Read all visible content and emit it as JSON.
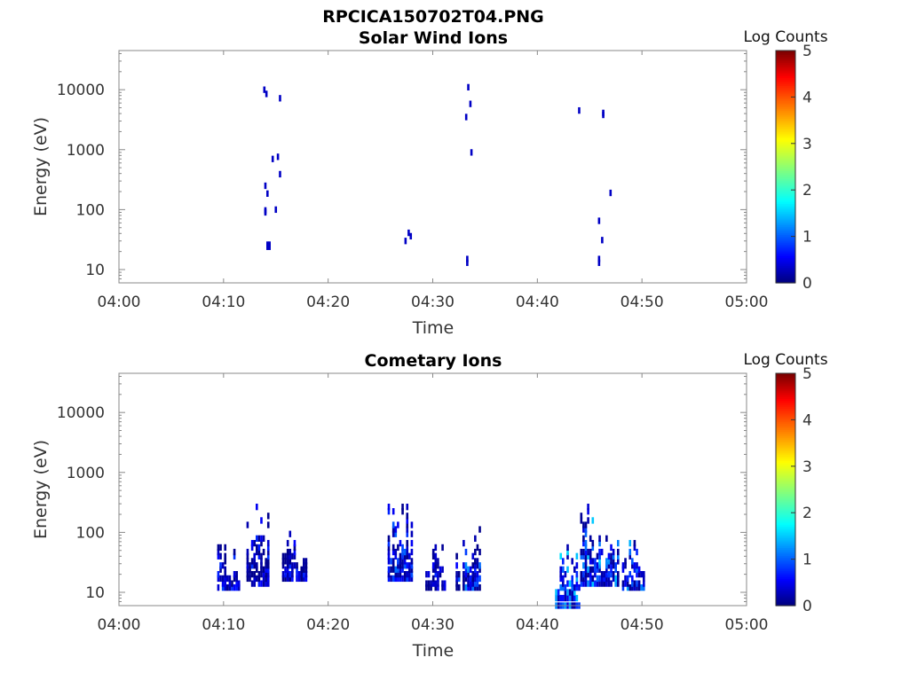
{
  "figure": {
    "title": "RPCICA150702T04.PNG"
  },
  "colormap": {
    "stops": [
      "#00007f",
      "#0000ff",
      "#00ffff",
      "#ffff00",
      "#ff0000",
      "#7f0000"
    ]
  },
  "chart_data": [
    {
      "type": "heatmap",
      "title": "Solar Wind Ions",
      "xlabel": "Time",
      "ylabel": "Energy (eV)",
      "x_range": [
        "04:00",
        "05:00"
      ],
      "x_ticks": [
        "04:00",
        "04:10",
        "04:20",
        "04:30",
        "04:40",
        "04:50",
        "05:00"
      ],
      "y_scale": "log",
      "y_range": [
        6,
        45000
      ],
      "y_ticks": [
        "10",
        "100",
        "1000",
        "10000"
      ],
      "colorbar": {
        "label": "Log Counts",
        "range": [
          0,
          5
        ],
        "ticks": [
          "0",
          "1",
          "2",
          "3",
          "4",
          "5"
        ]
      },
      "points": [
        {
          "t": 13.9,
          "e": 10000,
          "v": 0.3
        },
        {
          "t": 14.1,
          "e": 8500,
          "v": 0.3
        },
        {
          "t": 15.4,
          "e": 7200,
          "v": 0.3
        },
        {
          "t": 14.7,
          "e": 700,
          "v": 0.3
        },
        {
          "t": 15.2,
          "e": 760,
          "v": 0.3
        },
        {
          "t": 15.4,
          "e": 390,
          "v": 0.3
        },
        {
          "t": 14.0,
          "e": 250,
          "v": 0.3
        },
        {
          "t": 14.2,
          "e": 185,
          "v": 0.3
        },
        {
          "t": 14.0,
          "e": 97,
          "v": 0.3
        },
        {
          "t": 14.0,
          "e": 90,
          "v": 0.3
        },
        {
          "t": 15.0,
          "e": 100,
          "v": 0.3
        },
        {
          "t": 14.2,
          "e": 26,
          "v": 0.3
        },
        {
          "t": 14.4,
          "e": 26,
          "v": 0.3
        },
        {
          "t": 14.2,
          "e": 24,
          "v": 0.3
        },
        {
          "t": 14.4,
          "e": 24,
          "v": 0.3
        },
        {
          "t": 27.4,
          "e": 30,
          "v": 0.3
        },
        {
          "t": 27.7,
          "e": 41,
          "v": 0.3
        },
        {
          "t": 27.9,
          "e": 36,
          "v": 0.3
        },
        {
          "t": 33.4,
          "e": 11000,
          "v": 0.3
        },
        {
          "t": 33.6,
          "e": 5800,
          "v": 0.3
        },
        {
          "t": 33.2,
          "e": 3500,
          "v": 0.3
        },
        {
          "t": 33.7,
          "e": 900,
          "v": 0.3
        },
        {
          "t": 33.3,
          "e": 15,
          "v": 0.3
        },
        {
          "t": 33.3,
          "e": 13,
          "v": 0.3
        },
        {
          "t": 44.0,
          "e": 4500,
          "v": 0.3
        },
        {
          "t": 46.3,
          "e": 4100,
          "v": 0.3
        },
        {
          "t": 46.3,
          "e": 3800,
          "v": 0.3
        },
        {
          "t": 47.0,
          "e": 190,
          "v": 0.3
        },
        {
          "t": 45.9,
          "e": 65,
          "v": 0.3
        },
        {
          "t": 46.2,
          "e": 31,
          "v": 0.3
        },
        {
          "t": 45.9,
          "e": 15,
          "v": 0.3
        },
        {
          "t": 45.9,
          "e": 13,
          "v": 0.3
        }
      ]
    },
    {
      "type": "heatmap",
      "title": "Cometary Ions",
      "xlabel": "Time",
      "ylabel": "Energy (eV)",
      "x_range": [
        "04:00",
        "05:00"
      ],
      "x_ticks": [
        "04:00",
        "04:10",
        "04:20",
        "04:30",
        "04:40",
        "04:50",
        "05:00"
      ],
      "y_scale": "log",
      "y_range": [
        6,
        45000
      ],
      "y_ticks": [
        "10",
        "100",
        "1000",
        "10000"
      ],
      "colorbar": {
        "label": "Log Counts",
        "range": [
          0,
          5
        ],
        "ticks": [
          "0",
          "1",
          "2",
          "3",
          "4",
          "5"
        ]
      },
      "clusters": [
        {
          "t_start": 9.5,
          "t_end": 11.6,
          "e_low": 12,
          "e_high": 100,
          "v_min": 0.05,
          "v_max": 0.9
        },
        {
          "t_start": 12.3,
          "t_end": 14.5,
          "e_low": 14,
          "e_high": 450,
          "v_min": 0.05,
          "v_max": 0.8
        },
        {
          "t_start": 15.7,
          "t_end": 17.9,
          "e_low": 17,
          "e_high": 150,
          "v_min": 0.05,
          "v_max": 0.8
        },
        {
          "t_start": 25.8,
          "t_end": 28.1,
          "e_low": 17,
          "e_high": 500,
          "v_min": 0.05,
          "v_max": 1.1
        },
        {
          "t_start": 29.4,
          "t_end": 31.2,
          "e_low": 12,
          "e_high": 80,
          "v_min": 0.05,
          "v_max": 0.8
        },
        {
          "t_start": 32.3,
          "t_end": 34.6,
          "e_low": 12,
          "e_high": 130,
          "v_min": 0.05,
          "v_max": 1.3
        },
        {
          "t_start": 41.8,
          "t_end": 44.0,
          "e_low": 6,
          "e_high": 120,
          "v_min": 0.2,
          "v_max": 1.7
        },
        {
          "t_start": 44.2,
          "t_end": 47.8,
          "e_low": 14,
          "e_high": 350,
          "v_min": 0.1,
          "v_max": 1.5
        },
        {
          "t_start": 48.2,
          "t_end": 50.2,
          "e_low": 12,
          "e_high": 80,
          "v_min": 0.1,
          "v_max": 1.4
        }
      ]
    }
  ]
}
